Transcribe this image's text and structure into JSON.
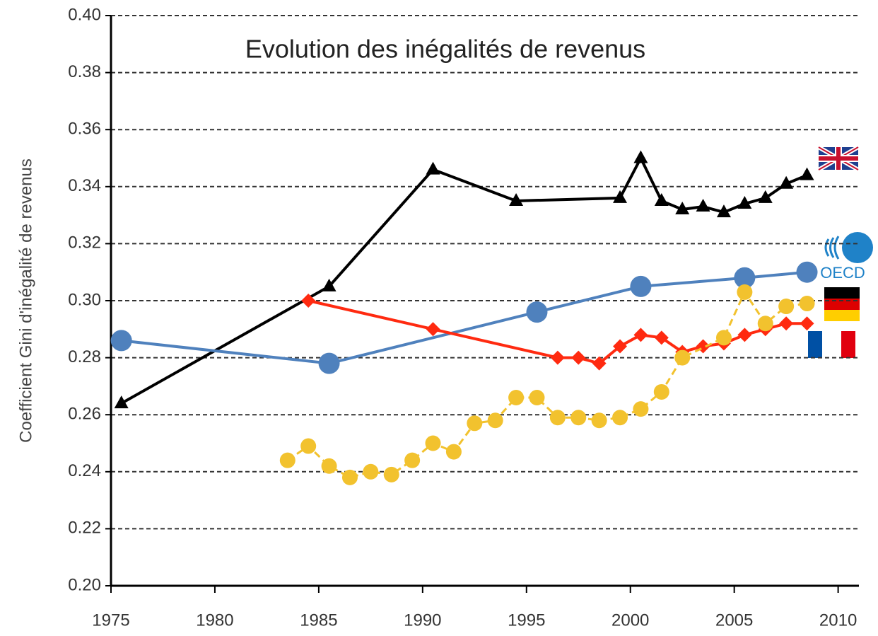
{
  "chart_data": {
    "type": "line",
    "title": "Evolution des inégalités de revenus",
    "y_label": "Coefficient Gini d'inégalité de revenus",
    "xlim": [
      1975,
      2011
    ],
    "ylim": [
      0.2,
      0.4
    ],
    "xticks": [
      1975,
      1980,
      1985,
      1990,
      1995,
      2000,
      2005,
      2010
    ],
    "yticks": [
      {
        "value": 0.2,
        "label": "0.20"
      },
      {
        "value": 0.22,
        "label": "0.22"
      },
      {
        "value": 0.24,
        "label": "0.24"
      },
      {
        "value": 0.26,
        "label": "0.26"
      },
      {
        "value": 0.28,
        "label": "0.28"
      },
      {
        "value": 0.3,
        "label": "0.30"
      },
      {
        "value": 0.32,
        "label": "0.32"
      },
      {
        "value": 0.34,
        "label": "0.34"
      },
      {
        "value": 0.36,
        "label": "0.36"
      },
      {
        "value": 0.38,
        "label": "0.38"
      },
      {
        "value": 0.4,
        "label": "0.40"
      }
    ],
    "grid": true,
    "series": [
      {
        "color": "#000000",
        "marker": "triangle",
        "line": "solid",
        "x": [
          1975.5,
          1985.5,
          1990.5,
          1994.5,
          1999.5,
          2000.5,
          2001.5,
          2002.5,
          2003.5,
          2004.5,
          2005.5,
          2006.5,
          2007.5,
          2008.5
        ],
        "values": [
          0.264,
          0.305,
          0.346,
          0.335,
          0.336,
          0.35,
          0.335,
          0.332,
          0.333,
          0.331,
          0.334,
          0.336,
          0.341,
          0.344
        ]
      },
      {
        "name": "OECD",
        "color": "#4f81bd",
        "marker": "circle",
        "line": "solid",
        "x": [
          1975.5,
          1985.5,
          1995.5,
          2000.5,
          2005.5,
          2008.5
        ],
        "values": [
          0.286,
          0.278,
          0.296,
          0.305,
          0.308,
          0.31
        ]
      },
      {
        "color": "#ff2a10",
        "marker": "diamond",
        "line": "solid",
        "x": [
          1984.5,
          1990.5,
          1996.5,
          1997.5,
          1998.5,
          1999.5,
          2000.5,
          2001.5,
          2002.5,
          2003.5,
          2004.5,
          2005.5,
          2006.5,
          2007.5,
          2008.5
        ],
        "values": [
          0.3,
          0.29,
          0.28,
          0.28,
          0.278,
          0.284,
          0.288,
          0.287,
          0.282,
          0.284,
          0.285,
          0.288,
          0.29,
          0.292,
          0.292
        ]
      },
      {
        "color": "#f2c22e",
        "marker": "dot",
        "line": "dashed",
        "x": [
          1983.5,
          1984.5,
          1985.5,
          1986.5,
          1987.5,
          1988.5,
          1989.5,
          1990.5,
          1991.5,
          1992.5,
          1993.5,
          1994.5,
          1995.5,
          1996.5,
          1997.5,
          1998.5,
          1999.5,
          2000.5,
          2001.5,
          2002.5,
          2004.5,
          2005.5,
          2006.5,
          2007.5,
          2008.5
        ],
        "values": [
          0.244,
          0.249,
          0.242,
          0.238,
          0.24,
          0.239,
          0.244,
          0.25,
          0.247,
          0.257,
          0.258,
          0.266,
          0.266,
          0.259,
          0.259,
          0.258,
          0.259,
          0.262,
          0.268,
          0.28,
          0.287,
          0.303,
          0.292,
          0.298,
          0.299
        ]
      }
    ]
  }
}
